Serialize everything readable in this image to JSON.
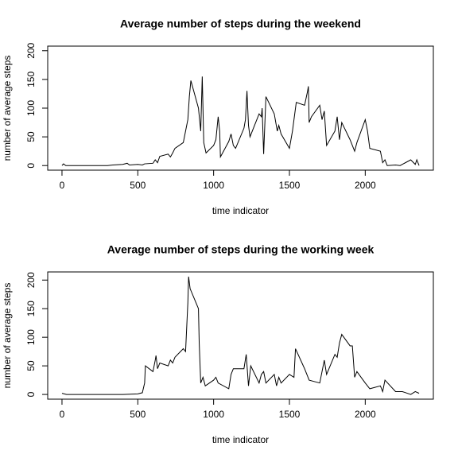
{
  "chart_data": [
    {
      "type": "line",
      "title": "Average number of steps during the weekend",
      "xlabel": "time indicator",
      "ylabel": "number of average steps",
      "x": [
        0,
        10,
        25,
        100,
        200,
        300,
        335,
        400,
        430,
        445,
        500,
        530,
        545,
        600,
        615,
        630,
        645,
        700,
        715,
        730,
        745,
        800,
        815,
        830,
        840,
        850,
        900,
        915,
        925,
        935,
        950,
        1000,
        1015,
        1030,
        1040,
        1045,
        1100,
        1115,
        1130,
        1145,
        1200,
        1210,
        1220,
        1230,
        1240,
        1300,
        1315,
        1320,
        1330,
        1345,
        1400,
        1420,
        1430,
        1445,
        1500,
        1520,
        1530,
        1545,
        1600,
        1620,
        1625,
        1630,
        1645,
        1700,
        1715,
        1730,
        1745,
        1800,
        1815,
        1830,
        1845,
        1900,
        1915,
        1930,
        1945,
        2000,
        2015,
        2030,
        2100,
        2115,
        2130,
        2145,
        2200,
        2230,
        2300,
        2330,
        2340,
        2355
      ],
      "values": [
        0,
        3,
        0,
        0,
        0,
        0,
        1,
        2,
        4,
        1,
        2,
        1,
        3,
        4,
        10,
        5,
        16,
        20,
        15,
        22,
        30,
        40,
        60,
        80,
        120,
        148,
        100,
        60,
        155,
        40,
        22,
        35,
        45,
        85,
        60,
        15,
        42,
        55,
        35,
        30,
        65,
        80,
        130,
        70,
        50,
        90,
        85,
        100,
        20,
        120,
        90,
        60,
        70,
        55,
        30,
        60,
        80,
        110,
        105,
        130,
        138,
        75,
        85,
        105,
        80,
        95,
        35,
        60,
        85,
        45,
        75,
        45,
        35,
        25,
        40,
        80,
        60,
        30,
        25,
        5,
        10,
        0,
        1,
        0,
        10,
        2,
        10,
        0
      ],
      "color": "#000000",
      "xlim": [
        -94.2,
        2449.2
      ],
      "ylim": [
        -8,
        208
      ],
      "xticks": [
        0,
        500,
        1000,
        1500,
        2000
      ],
      "yticks": [
        0,
        50,
        100,
        150,
        200
      ]
    },
    {
      "type": "line",
      "title": "Average number of steps during the working week",
      "xlabel": "time indicator",
      "ylabel": "number of average steps",
      "x": [
        0,
        30,
        100,
        200,
        300,
        400,
        500,
        530,
        545,
        550,
        600,
        615,
        620,
        630,
        645,
        700,
        715,
        730,
        745,
        800,
        815,
        830,
        835,
        845,
        900,
        905,
        915,
        930,
        945,
        1000,
        1015,
        1030,
        1100,
        1115,
        1130,
        1200,
        1215,
        1230,
        1245,
        1300,
        1315,
        1330,
        1345,
        1400,
        1415,
        1430,
        1445,
        1500,
        1530,
        1540,
        1600,
        1630,
        1700,
        1715,
        1730,
        1745,
        1800,
        1815,
        1830,
        1845,
        1900,
        1915,
        1930,
        1945,
        2000,
        2030,
        2100,
        2115,
        2130,
        2200,
        2245,
        2300,
        2330,
        2355
      ],
      "values": [
        2,
        0,
        0,
        0,
        0,
        0,
        1,
        3,
        20,
        50,
        40,
        60,
        68,
        45,
        55,
        50,
        60,
        55,
        65,
        80,
        75,
        160,
        206,
        185,
        150,
        90,
        20,
        30,
        15,
        25,
        30,
        20,
        10,
        35,
        45,
        45,
        70,
        15,
        50,
        20,
        35,
        40,
        20,
        35,
        15,
        30,
        20,
        35,
        30,
        80,
        45,
        25,
        20,
        40,
        60,
        35,
        70,
        65,
        90,
        105,
        85,
        85,
        30,
        40,
        20,
        10,
        15,
        5,
        25,
        5,
        5,
        0,
        5,
        2
      ],
      "color": "#000000",
      "xlim": [
        -94.2,
        2449.2
      ],
      "ylim": [
        -8.24,
        214.24
      ],
      "xticks": [
        0,
        500,
        1000,
        1500,
        2000
      ],
      "yticks": [
        0,
        50,
        100,
        150,
        200
      ]
    }
  ]
}
